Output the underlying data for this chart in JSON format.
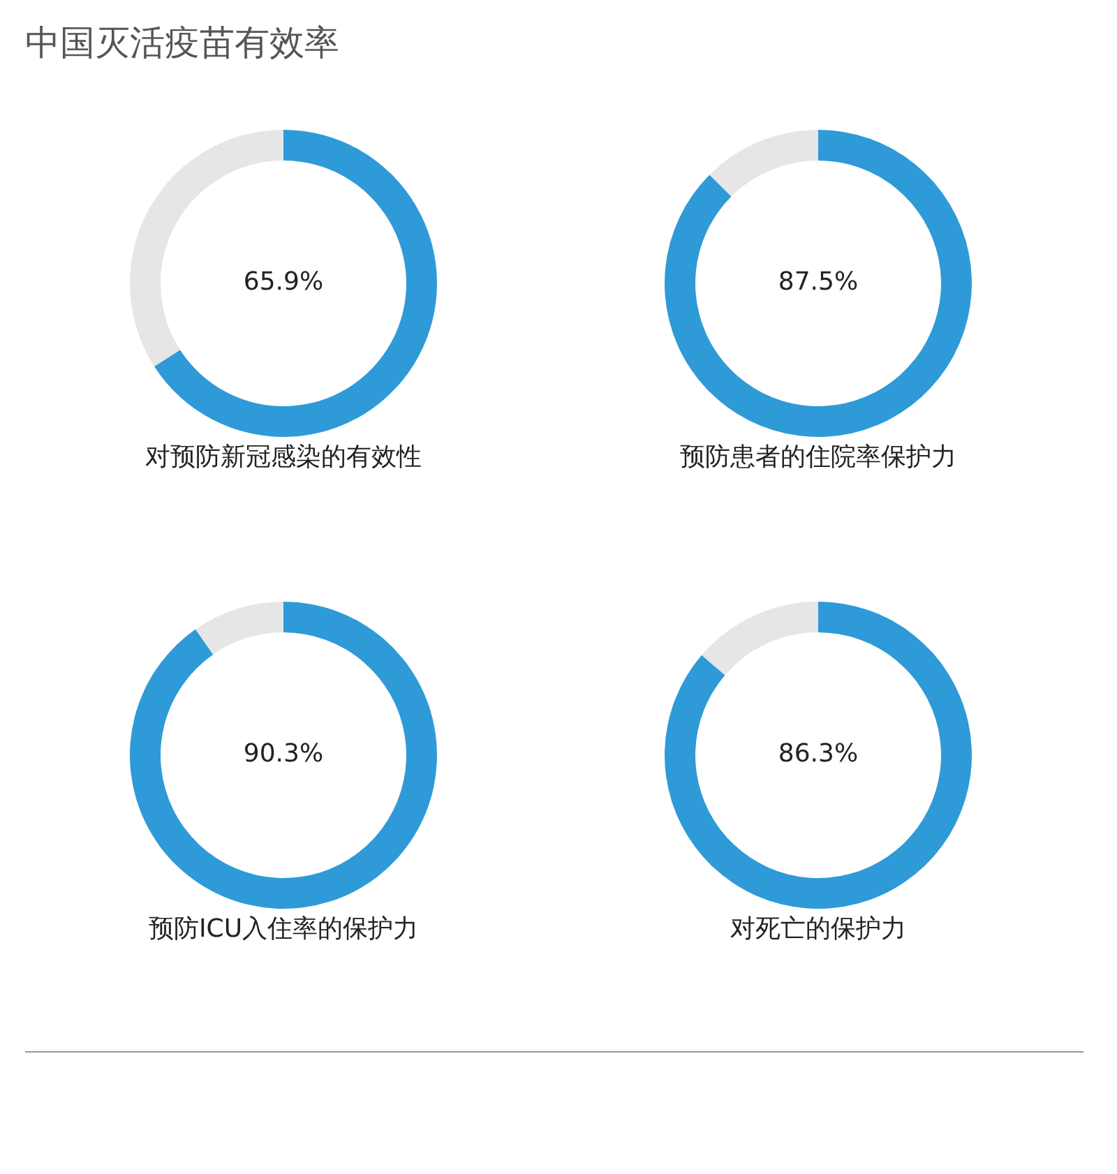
{
  "chart_data": [
    {
      "type": "donut",
      "title": "中国灭活疫苗有效率",
      "xlabel": "对预防新冠感染的有效性",
      "categories": [
        null,
        null
      ],
      "values": [
        65.9,
        34.1
      ],
      "colors": [
        "#2e9ad8",
        "#e6e6e6"
      ],
      "value_labels": [
        "65.9%",
        null
      ]
    },
    {
      "type": "donut",
      "xlabel": "预防患者的住院率保护力",
      "categories": [
        null,
        null
      ],
      "values": [
        87.5,
        12.5
      ],
      "colors": [
        "#2e9ad8",
        "#e6e6e6"
      ],
      "value_labels": [
        "87.5%",
        null
      ]
    },
    {
      "type": "donut",
      "xlabel": "预防ICU入住率的保护力",
      "categories": [
        null,
        null
      ],
      "values": [
        90.3,
        9.7
      ],
      "colors": [
        "#2e9ad8",
        "#e6e6e6"
      ],
      "value_labels": [
        "90.3%",
        null
      ]
    },
    {
      "type": "donut",
      "xlabel": "对死亡的保护力",
      "categories": [
        null,
        null
      ],
      "values": [
        86.3,
        13.7
      ],
      "colors": [
        "#2e9ad8",
        "#e6e6e6"
      ],
      "value_labels": [
        "86.3%",
        null
      ]
    }
  ]
}
